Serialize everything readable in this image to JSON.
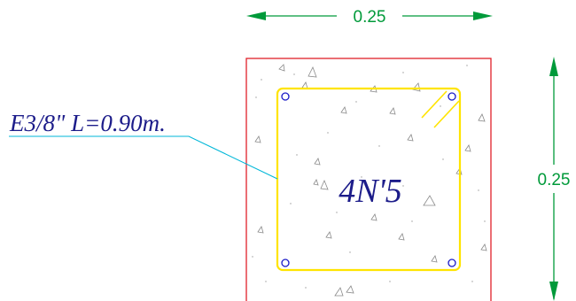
{
  "dimensions": {
    "width": "0.25",
    "height": "0.25"
  },
  "labels": {
    "stirrup": "E3/8\" L=0.90m.",
    "rebar": "4N'5"
  },
  "colors": {
    "dimension": "#009a3a",
    "section_outline": "#e0202a",
    "stirrup": "#ffe400",
    "rebar": "#1a1ac8",
    "label": "#1c1c8a",
    "leader": "#00b7d8",
    "aggregate": "#8a8a8a"
  }
}
